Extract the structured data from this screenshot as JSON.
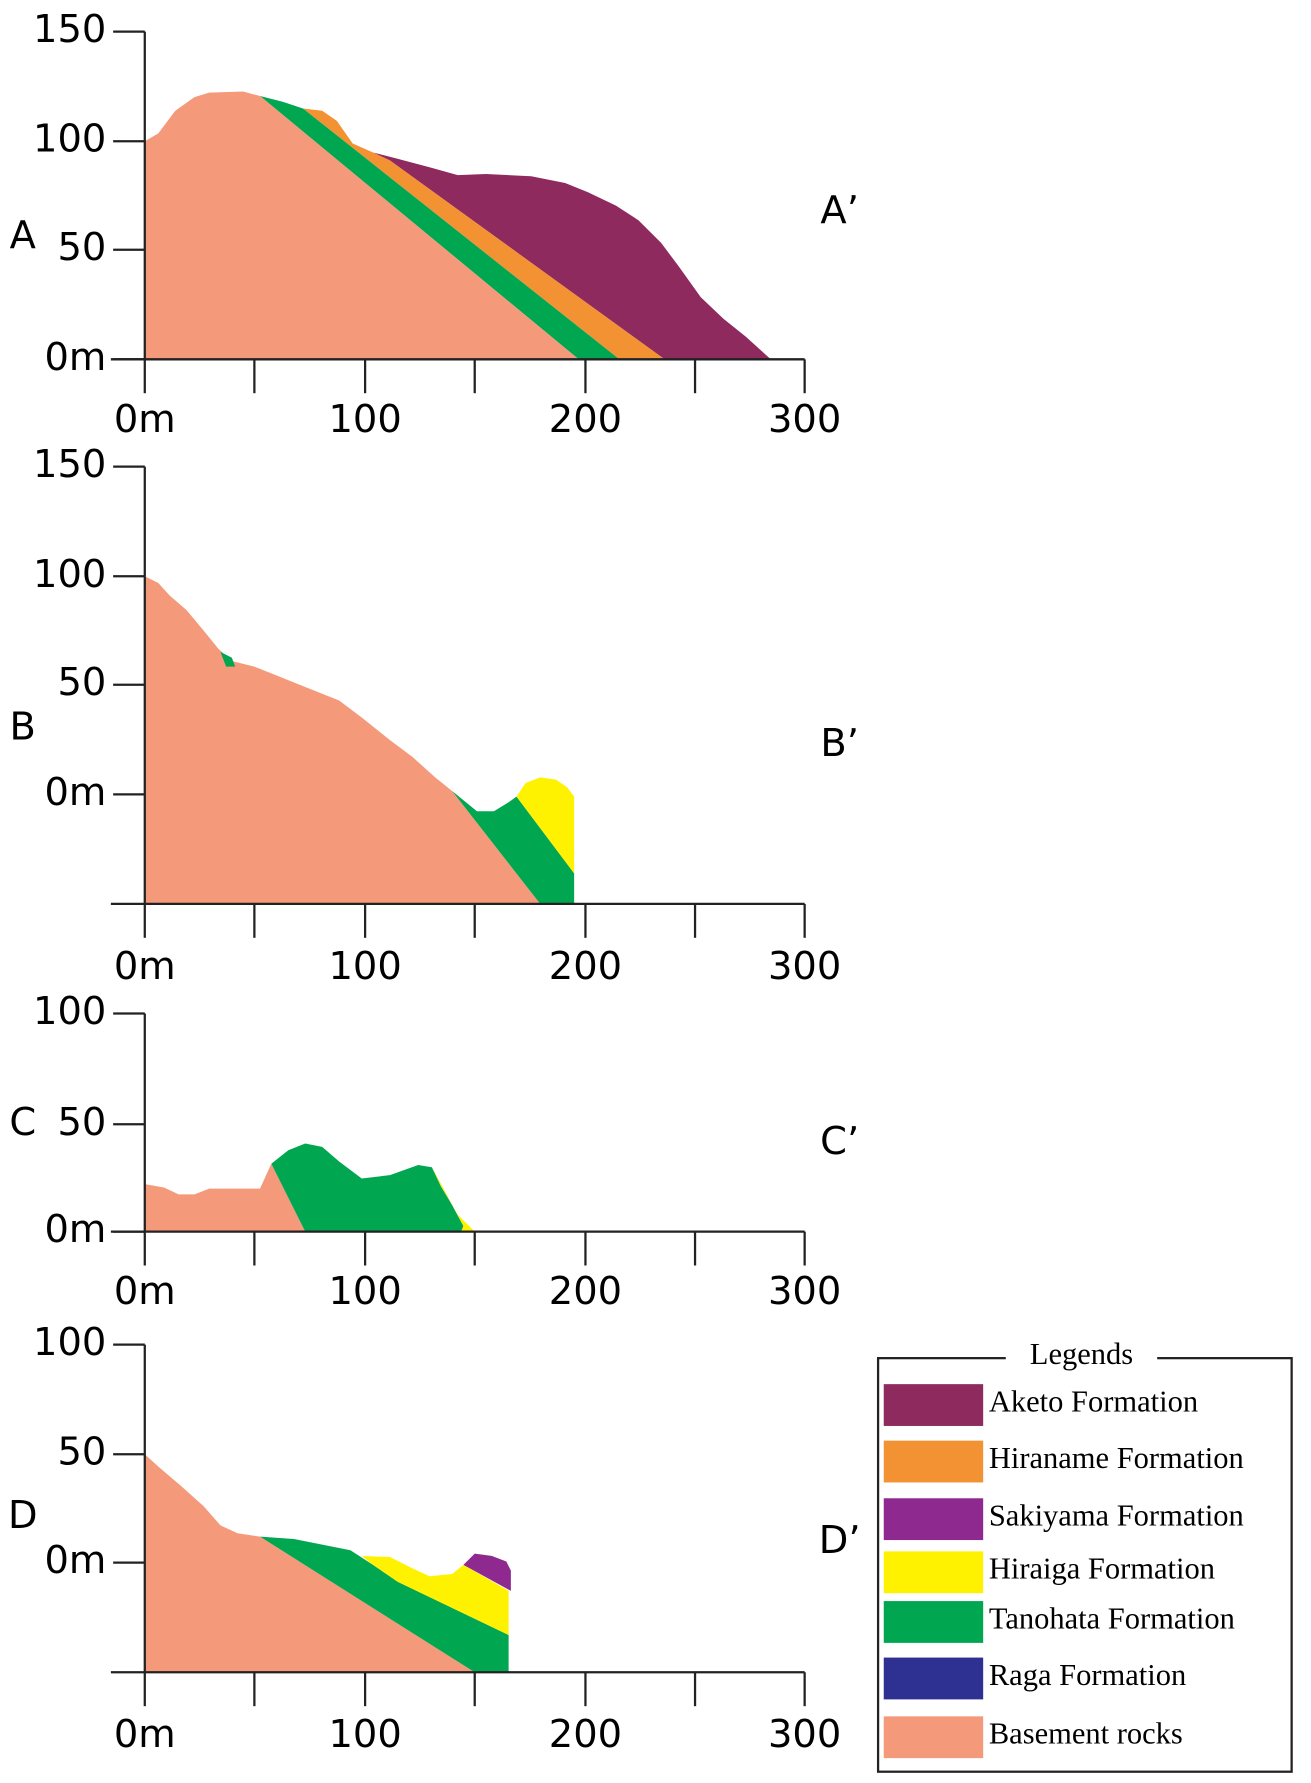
{
  "sections": [
    {
      "left": "A",
      "right": "A’",
      "y_ticks": [
        "150",
        "100",
        "50",
        "0m"
      ],
      "x_ticks": [
        "0m",
        "100",
        "200",
        "300"
      ]
    },
    {
      "left": "B",
      "right": "B’",
      "y_ticks": [
        "150",
        "100",
        "50",
        "0m"
      ],
      "x_ticks": [
        "0m",
        "100",
        "200",
        "300"
      ]
    },
    {
      "left": "C",
      "right": "C’",
      "y_ticks": [
        "100",
        "50",
        "0m"
      ],
      "x_ticks": [
        "0m",
        "100",
        "200",
        "300"
      ]
    },
    {
      "left": "D",
      "right": "D’",
      "y_ticks": [
        "100",
        "50",
        "0m"
      ],
      "x_ticks": [
        "0m",
        "100",
        "200",
        "300"
      ]
    }
  ],
  "legend": {
    "title": "Legends",
    "items": [
      {
        "label": "Aketo Formation",
        "color": "#8e2a5e"
      },
      {
        "label": "Hiraname Formation",
        "color": "#f39233"
      },
      {
        "label": "Sakiyama Formation",
        "color": "#8e2a8f"
      },
      {
        "label": "Hiraiga Formation",
        "color": "#fff200"
      },
      {
        "label": "Tanohata Formation",
        "color": "#00a650"
      },
      {
        "label": "Raga Formation",
        "color": "#2e3192"
      },
      {
        "label": "Basement rocks",
        "color": "#f4997a"
      }
    ]
  }
}
